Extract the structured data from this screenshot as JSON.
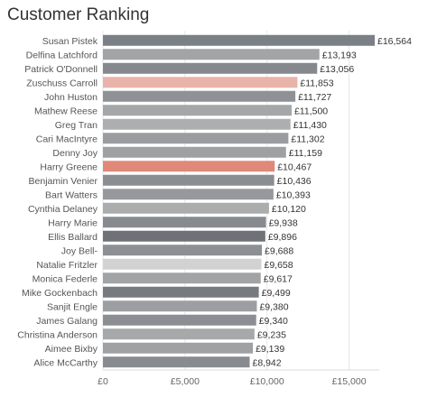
{
  "title": "Customer Ranking",
  "chart_data": {
    "type": "bar",
    "orientation": "horizontal",
    "title": "Customer Ranking",
    "xlabel": "",
    "ylabel": "",
    "xlim": [
      0,
      17500
    ],
    "x_ticks": [
      0,
      5000,
      10000,
      15000
    ],
    "x_tick_labels": [
      "£0",
      "£5,000",
      "£10,000",
      "£15,000"
    ],
    "grid": true,
    "categories": [
      "Susan Pistek",
      "Delfina Latchford",
      "Patrick O'Donnell",
      "Zuschuss Carroll",
      "John Huston",
      "Mathew Reese",
      "Greg Tran",
      "Cari MacIntyre",
      "Denny Joy",
      "Harry Greene",
      "Benjamin Venier",
      "Bart Watters",
      "Cynthia Delaney",
      "Harry Marie",
      "Ellis Ballard",
      "Joy Bell-",
      "Natalie Fritzler",
      "Monica Federle",
      "Mike Gockenbach",
      "Sanjit Engle",
      "James Galang",
      "Christina Anderson",
      "Aimee Bixby",
      "Alice McCarthy"
    ],
    "values": [
      16564,
      13193,
      13056,
      11853,
      11727,
      11500,
      11430,
      11302,
      11159,
      10467,
      10436,
      10393,
      10120,
      9938,
      9896,
      9688,
      9658,
      9617,
      9499,
      9380,
      9340,
      9235,
      9139,
      8942
    ],
    "value_labels": [
      "£16,564",
      "£13,193",
      "£13,056",
      "£11,853",
      "£11,727",
      "£11,500",
      "£11,430",
      "£11,302",
      "£11,159",
      "£10,467",
      "£10,436",
      "£10,393",
      "£10,120",
      "£9,938",
      "£9,896",
      "£9,688",
      "£9,658",
      "£9,617",
      "£9,499",
      "£9,380",
      "£9,340",
      "£9,235",
      "£9,139",
      "£8,942"
    ],
    "colors": [
      "#7b7f86",
      "#a2a4a6",
      "#85888d",
      "#e8b3a9",
      "#8e9196",
      "#a4a6a8",
      "#acaeaf",
      "#9a9c9f",
      "#9ea0a2",
      "#e0897a",
      "#8a8d92",
      "#96989b",
      "#aaacad",
      "#878a8e",
      "#6e7278",
      "#8c8f93",
      "#d2d2d2",
      "#a1a3a5",
      "#777b80",
      "#9c9ea1",
      "#8b8e92",
      "#a6a8aa",
      "#9fa1a3",
      "#888b8f"
    ]
  }
}
